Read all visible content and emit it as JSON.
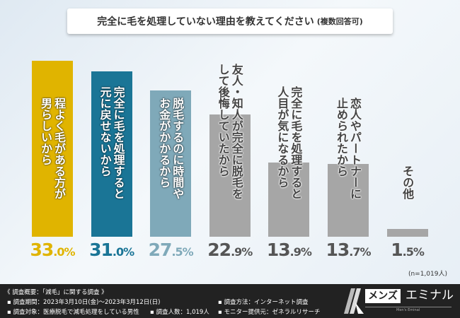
{
  "title": "完全に毛を処理していない理由を教えてください",
  "title_note": "(複数回答可)",
  "chart_data": {
    "type": "bar",
    "title": "完全に毛を処理していない理由を教えてください (複数回答可)",
    "categories": [
      [
        "程よく毛がある方が",
        "男らしいから"
      ],
      [
        "完全に毛を処理すると",
        "元に戻せないから"
      ],
      [
        "脱毛するのに時間や",
        "お金がかかるから"
      ],
      [
        "友人・知人が完全に脱毛を",
        "して後悔していたから"
      ],
      [
        "完全に毛を処理すると",
        "人目が気になるから"
      ],
      [
        "恋人やパートナーに",
        "止められたから"
      ],
      [
        "その他"
      ]
    ],
    "values": [
      33.0,
      31.0,
      27.5,
      22.9,
      13.9,
      13.7,
      1.5
    ],
    "value_labels": [
      [
        "33",
        ".0%"
      ],
      [
        "31",
        ".0%"
      ],
      [
        "27",
        ".5%"
      ],
      [
        "22",
        ".9%"
      ],
      [
        "13",
        ".9%"
      ],
      [
        "13",
        ".7%"
      ],
      [
        "1",
        ".5%"
      ]
    ],
    "colors": [
      "#e0b400",
      "#1a7596",
      "#7fa9b9",
      "#a6a6a6",
      "#a6a6a6",
      "#a6a6a6",
      "#a6a6a6"
    ],
    "pct_colors": [
      "#e0b400",
      "#1a7596",
      "#7fa9b9",
      "#555555",
      "#555555",
      "#555555",
      "#555555"
    ],
    "ylim": [
      0,
      33
    ],
    "grid": false
  },
  "n_note": "(n=1,019人)",
  "footer": {
    "heading": "《 調査概要：「減毛」に関する調査 》",
    "period": "▪ 調査期間：2023年3月10日(金)～2023年3月12日(日)",
    "target": "▪ 調査対象：医療脱毛で減毛処理をしている男性",
    "count": "▪ 調査人数：1,019人",
    "method": "▪ 調査方法：インターネット調査",
    "provider": "▪ モニター提供元：ゼネラルリサーチ"
  },
  "logo": {
    "box": "メンズ",
    "text": "エミナル",
    "sub": "Men's Eminal"
  }
}
